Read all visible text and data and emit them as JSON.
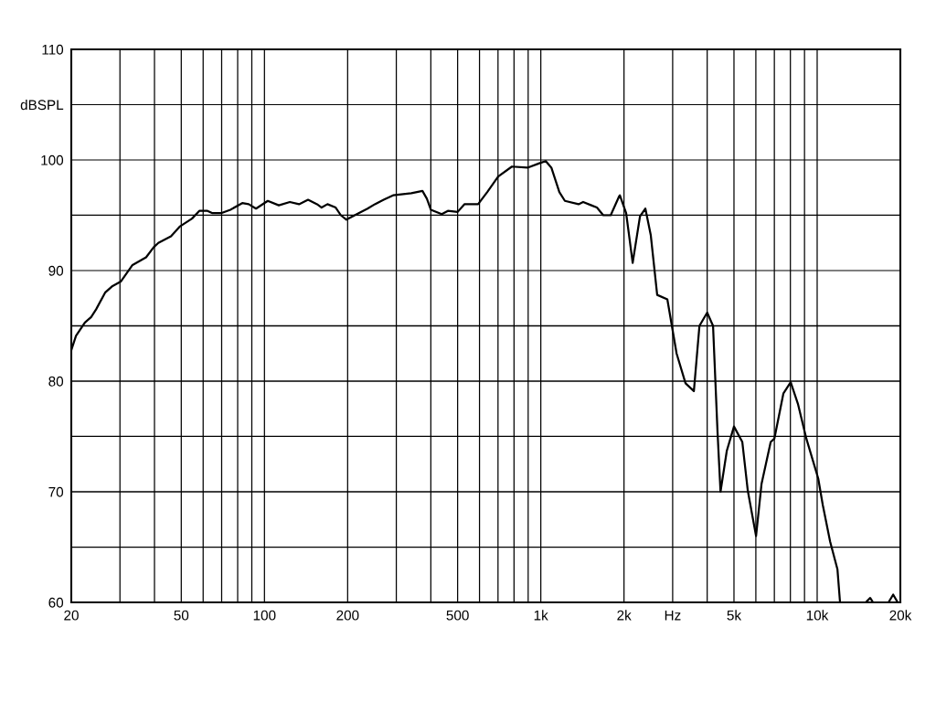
{
  "chart_data": {
    "type": "line",
    "log": "x",
    "grid": true,
    "marker": "none",
    "line_style": "solid",
    "xlim": [
      20,
      20000
    ],
    "ylim": [
      60,
      110
    ],
    "xticks": [
      20,
      {
        "value": 30,
        "label": null
      },
      {
        "value": 40,
        "label": null
      },
      50,
      {
        "value": 60,
        "label": null
      },
      {
        "value": 70,
        "label": null
      },
      {
        "value": 80,
        "label": null
      },
      {
        "value": 90,
        "label": null
      },
      100,
      200,
      {
        "value": 300,
        "label": null
      },
      {
        "value": 400,
        "label": null
      },
      500,
      {
        "value": 600,
        "label": null
      },
      {
        "value": 700,
        "label": null
      },
      {
        "value": 800,
        "label": null
      },
      {
        "value": 900,
        "label": null
      },
      {
        "value": 1000,
        "label": "1k"
      },
      {
        "value": 2000,
        "label": "2k"
      },
      {
        "value": 3000,
        "label": "Hz"
      },
      {
        "value": 4000,
        "label": null
      },
      {
        "value": 5000,
        "label": "5k"
      },
      {
        "value": 6000,
        "label": null
      },
      {
        "value": 7000,
        "label": null
      },
      {
        "value": 8000,
        "label": null
      },
      {
        "value": 9000,
        "label": null
      },
      {
        "value": 10000,
        "label": "10k"
      },
      {
        "value": 20000,
        "label": "20k"
      }
    ],
    "yticks": [
      60,
      {
        "value": 65,
        "label": null
      },
      70,
      {
        "value": 75,
        "label": null
      },
      80,
      {
        "value": 85,
        "label": null
      },
      90,
      {
        "value": 95,
        "label": null
      },
      100,
      {
        "value": 105,
        "label": "dBSPL"
      },
      110
    ],
    "series": [
      {
        "color": "#000000",
        "x": [
          20,
          20.8,
          22.4,
          23.6,
          24.6,
          26.5,
          28.2,
          30.2,
          33.3,
          37.3,
          39.7,
          41.3,
          45.9,
          49.5,
          54.7,
          58.1,
          62.2,
          64.6,
          70,
          75.3,
          83.1,
          87.7,
          93.2,
          102.8,
          112.7,
          123.6,
          133.4,
          143.8,
          155,
          161,
          169,
          181,
          189,
          198,
          220,
          236,
          251,
          270,
          292,
          340,
          373,
          387,
          400,
          438,
          461,
          500,
          529,
          593,
          640,
          701,
          786,
          895,
          988,
          1042,
          1092,
          1167,
          1222,
          1370,
          1423,
          1524,
          1596,
          1683,
          1790,
          1919,
          1932,
          2036,
          2150,
          2285,
          2390,
          2500,
          2637,
          2870,
          3100,
          3340,
          3580,
          3750,
          4000,
          4200,
          4360,
          4470,
          4710,
          5000,
          5360,
          5610,
          6010,
          6290,
          6790,
          7000,
          7550,
          8020,
          8530,
          9140,
          10090,
          10480,
          11140,
          11840,
          12100,
          13500,
          14990,
          15560,
          15930,
          17000,
          18120,
          18840,
          19560
        ],
        "values": [
          82.8,
          84.1,
          85.3,
          85.8,
          86.5,
          88.0,
          88.6,
          89.0,
          90.5,
          91.2,
          92.1,
          92.5,
          93.1,
          94.0,
          94.7,
          95.4,
          95.4,
          95.2,
          95.2,
          95.5,
          96.1,
          96.0,
          95.6,
          96.3,
          95.9,
          96.2,
          96.0,
          96.4,
          96.0,
          95.7,
          96.0,
          95.7,
          95.0,
          94.6,
          95.2,
          95.6,
          96.0,
          96.4,
          96.8,
          97.0,
          97.2,
          96.5,
          95.5,
          95.1,
          95.4,
          95.3,
          96.0,
          96.0,
          97.1,
          98.5,
          99.4,
          99.3,
          99.7,
          99.9,
          99.3,
          97.1,
          96.3,
          96.0,
          96.2,
          95.9,
          95.7,
          95.0,
          95.0,
          96.7,
          96.8,
          95.2,
          90.7,
          94.9,
          95.6,
          93.2,
          87.8,
          87.4,
          82.5,
          79.8,
          79.1,
          85.0,
          86.2,
          85.0,
          75.4,
          70.0,
          73.7,
          75.9,
          74.5,
          70.1,
          66.0,
          70.7,
          74.5,
          74.8,
          78.9,
          79.9,
          77.9,
          74.8,
          71.2,
          68.8,
          65.5,
          63.0,
          60,
          null,
          60,
          60.4,
          60,
          null,
          60,
          60.7,
          60
        ]
      }
    ]
  }
}
